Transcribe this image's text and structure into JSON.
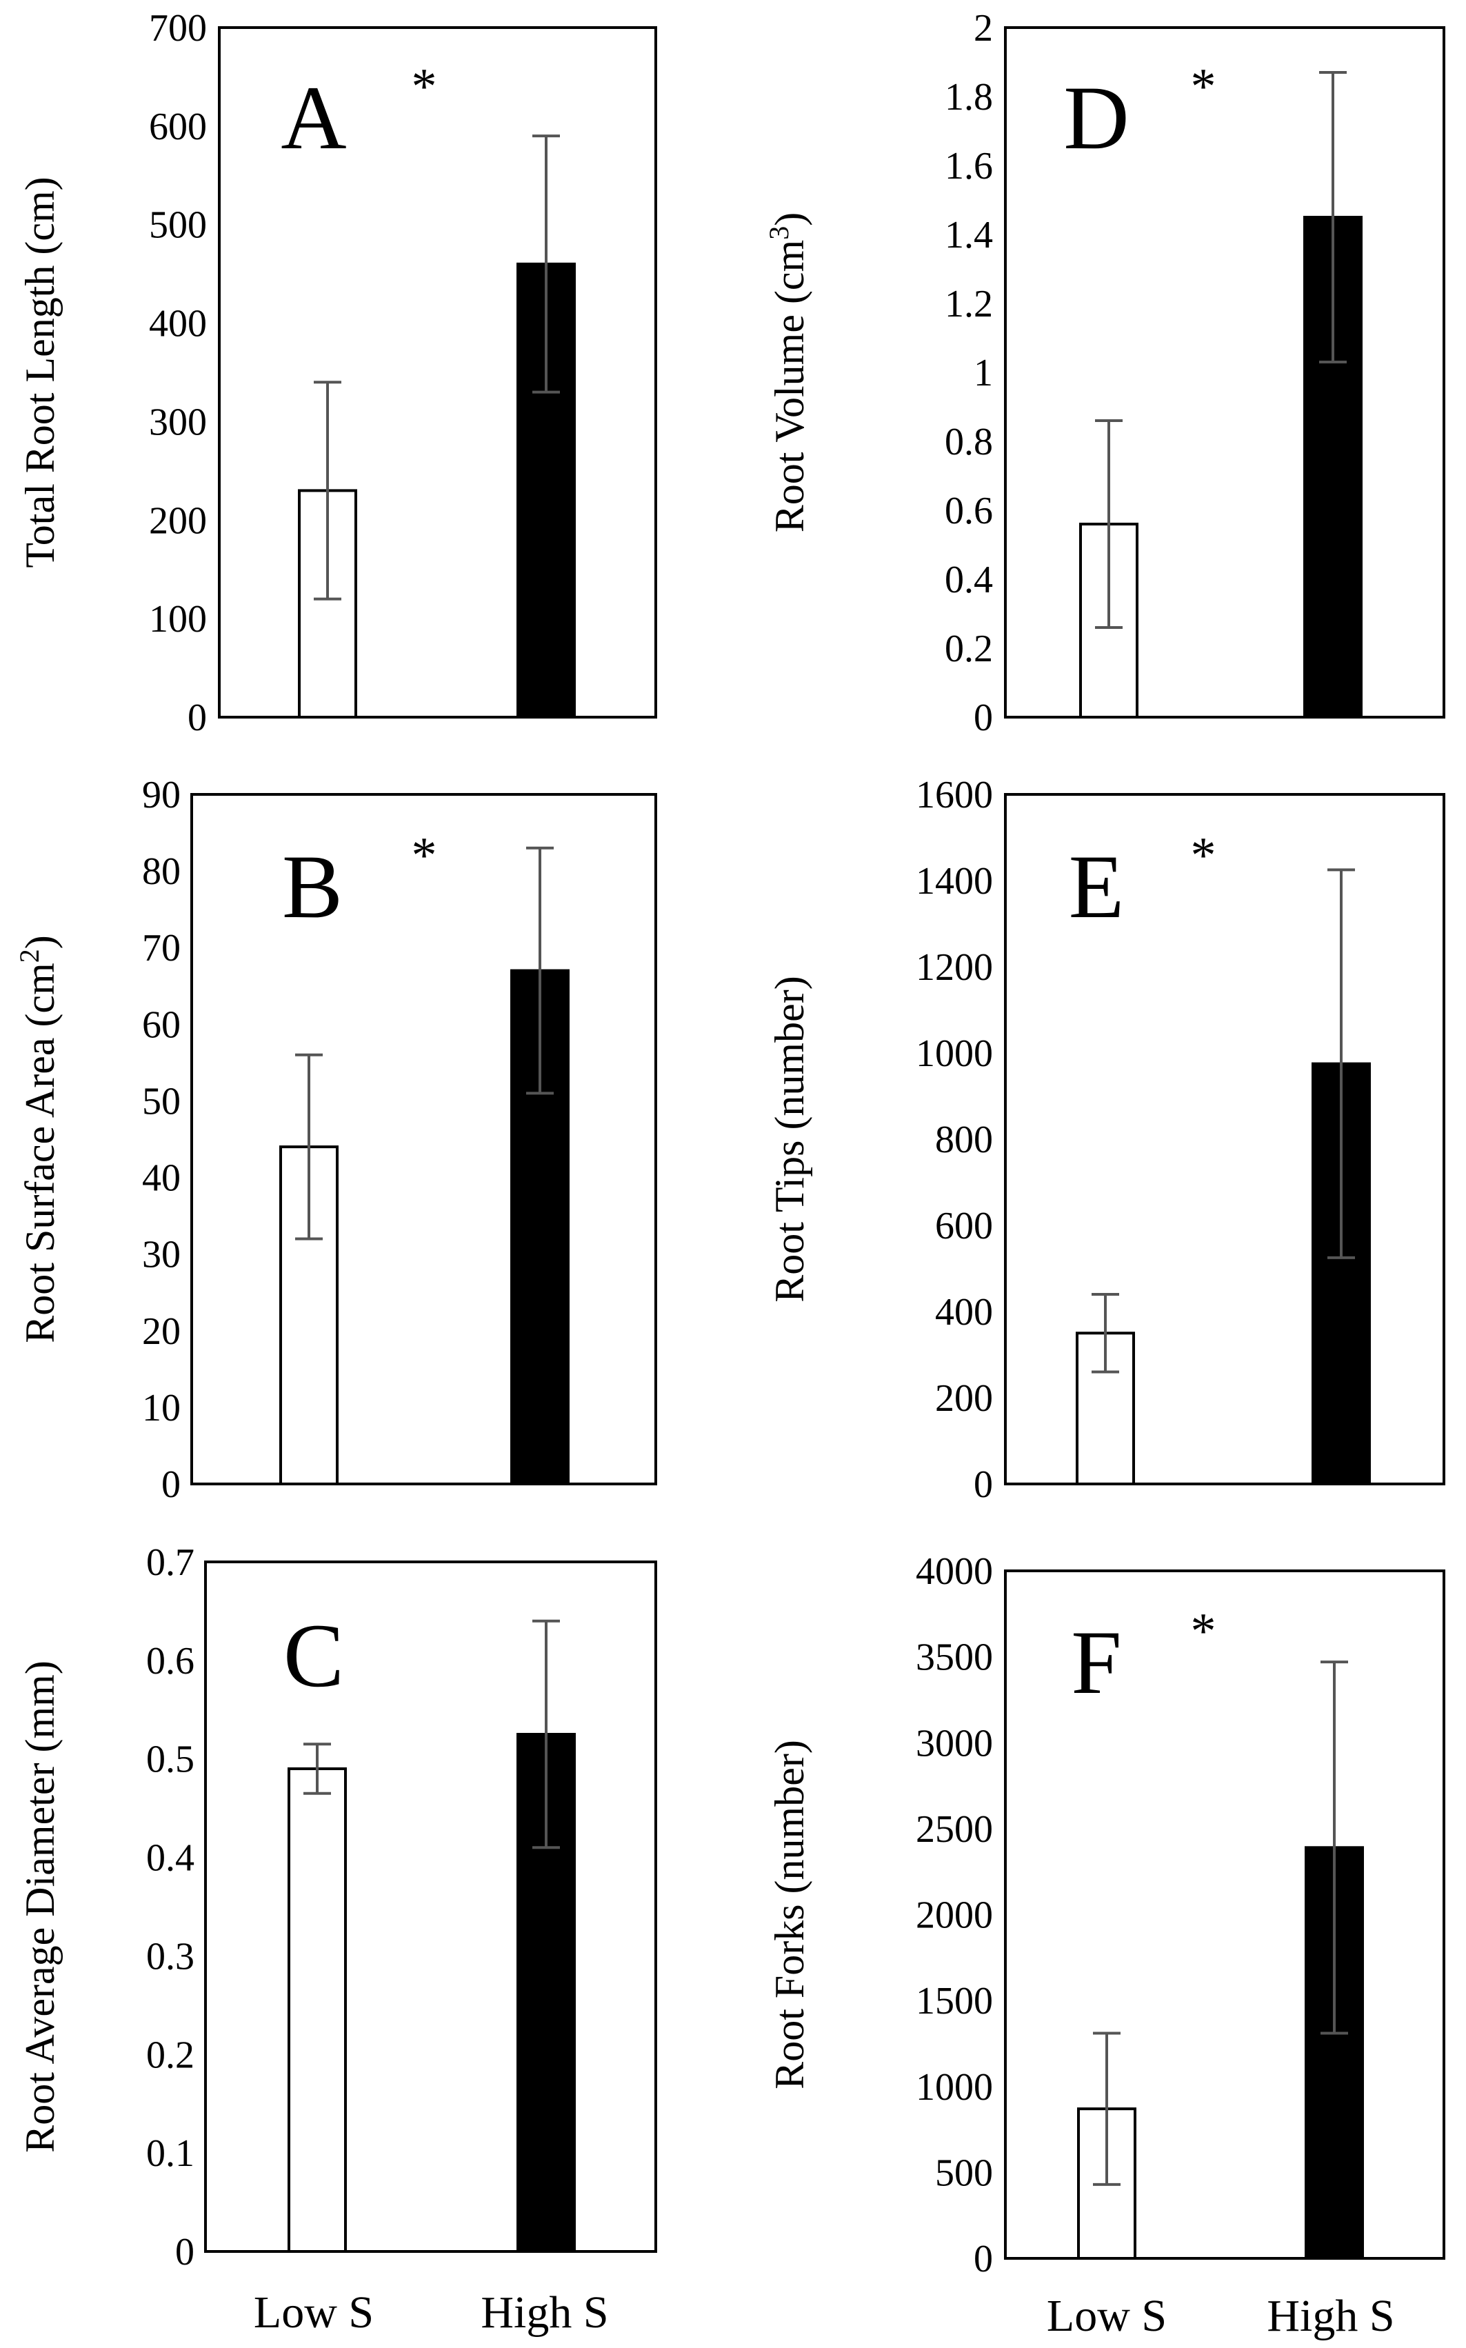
{
  "chart_data": [
    {
      "type": "bar",
      "panel": "A",
      "ylabel": "Total Root Length (cm)",
      "ylabel_sup": "",
      "ylabel_tail": "",
      "categories": [
        "Low S",
        "High S"
      ],
      "values": [
        230,
        460
      ],
      "errors": [
        110,
        130
      ],
      "colors": [
        "#ffffff",
        "#000000"
      ],
      "ylim": [
        0,
        700
      ],
      "yticks": [
        0,
        100,
        200,
        300,
        400,
        500,
        600,
        700
      ],
      "significance": "*"
    },
    {
      "type": "bar",
      "panel": "B",
      "ylabel": "Root Surface Area (cm",
      "ylabel_sup": "2",
      "ylabel_tail": ")",
      "categories": [
        "Low S",
        "High S"
      ],
      "values": [
        44,
        67
      ],
      "errors": [
        12,
        16
      ],
      "colors": [
        "#ffffff",
        "#000000"
      ],
      "ylim": [
        0,
        90
      ],
      "yticks": [
        0,
        10,
        20,
        30,
        40,
        50,
        60,
        70,
        80,
        90
      ],
      "significance": "*"
    },
    {
      "type": "bar",
      "panel": "C",
      "ylabel": "Root Average Diameter (mm)",
      "ylabel_sup": "",
      "ylabel_tail": "",
      "categories": [
        "Low S",
        "High S"
      ],
      "values": [
        0.49,
        0.525
      ],
      "errors": [
        0.025,
        0.115
      ],
      "colors": [
        "#ffffff",
        "#000000"
      ],
      "ylim": [
        0,
        0.7
      ],
      "yticks": [
        0,
        0.1,
        0.2,
        0.3,
        0.4,
        0.5,
        0.6,
        0.7
      ],
      "significance": ""
    },
    {
      "type": "bar",
      "panel": "D",
      "ylabel": "Root Volume (cm",
      "ylabel_sup": "3",
      "ylabel_tail": ")",
      "categories": [
        "Low S",
        "High S"
      ],
      "values": [
        0.56,
        1.45
      ],
      "errors": [
        0.3,
        0.42
      ],
      "colors": [
        "#ffffff",
        "#000000"
      ],
      "ylim": [
        0,
        2
      ],
      "yticks": [
        0,
        0.2,
        0.4,
        0.6,
        0.8,
        1,
        1.2,
        1.4,
        1.6,
        1.8,
        2
      ],
      "significance": "*"
    },
    {
      "type": "bar",
      "panel": "E",
      "ylabel": "Root Tips (number)",
      "ylabel_sup": "",
      "ylabel_tail": "",
      "categories": [
        "Low S",
        "High S"
      ],
      "values": [
        350,
        975
      ],
      "errors": [
        90,
        450
      ],
      "colors": [
        "#ffffff",
        "#000000"
      ],
      "ylim": [
        0,
        1600
      ],
      "yticks": [
        0,
        200,
        400,
        600,
        800,
        1000,
        1200,
        1400,
        1600
      ],
      "significance": "*"
    },
    {
      "type": "bar",
      "panel": "F",
      "ylabel": "Root Forks (number)",
      "ylabel_sup": "",
      "ylabel_tail": "",
      "categories": [
        "Low S",
        "High S"
      ],
      "values": [
        870,
        2390
      ],
      "errors": [
        440,
        1080
      ],
      "colors": [
        "#ffffff",
        "#000000"
      ],
      "ylim": [
        0,
        4000
      ],
      "yticks": [
        0,
        500,
        1000,
        1500,
        2000,
        2500,
        3000,
        3500,
        4000
      ],
      "significance": "*"
    }
  ],
  "x_axis_labels": [
    "Low S",
    "High S"
  ]
}
